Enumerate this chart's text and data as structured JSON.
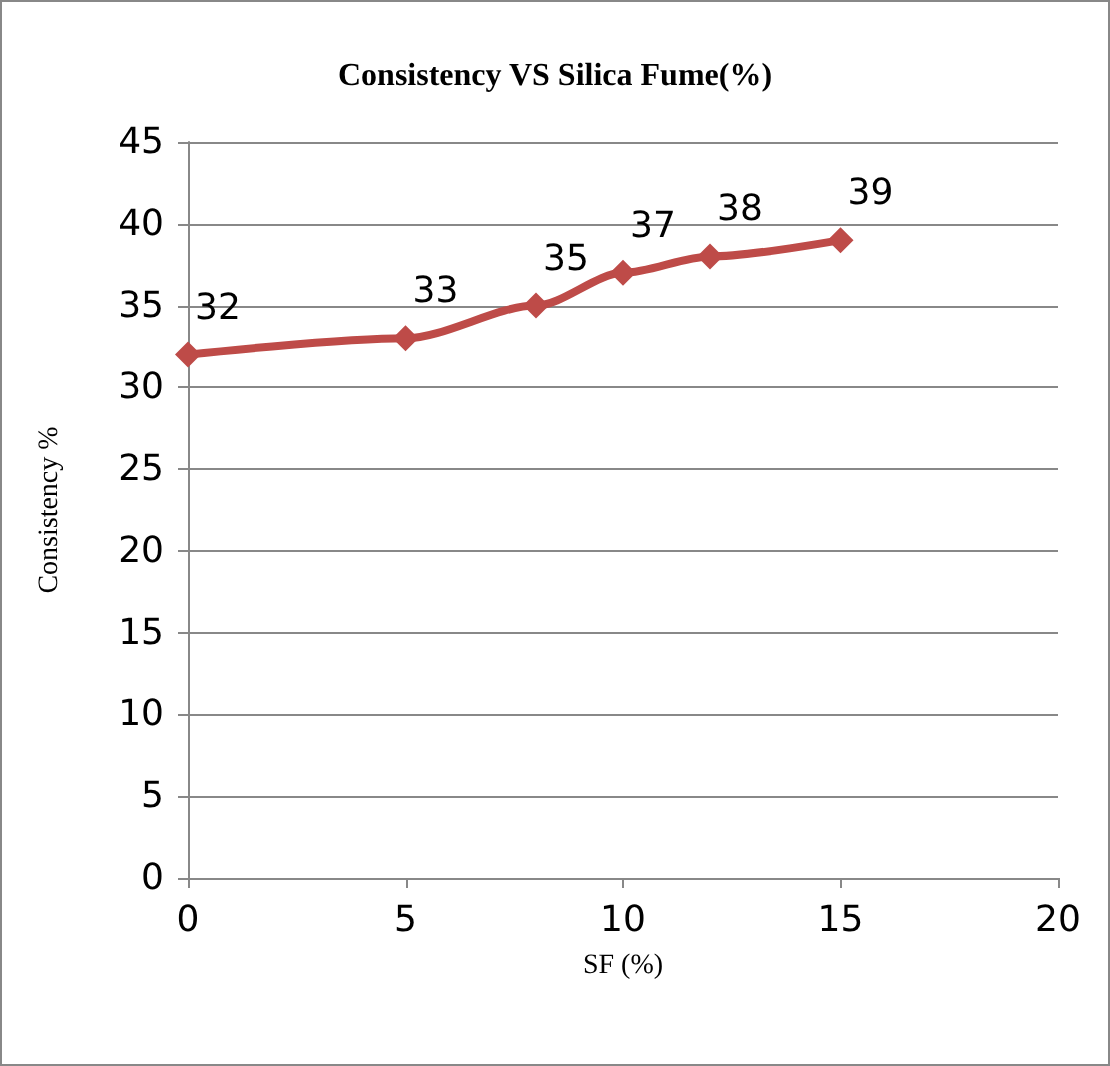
{
  "chart_data": {
    "type": "line",
    "title": "Consistency VS Silica Fume(%)",
    "xlabel": "SF (%)",
    "ylabel": "Consistency %",
    "x": [
      0,
      5,
      8,
      10,
      12,
      15
    ],
    "series": [
      {
        "color": "#be4b48",
        "values": [
          32,
          33,
          35,
          37,
          38,
          39
        ]
      }
    ],
    "xlim": [
      0,
      20
    ],
    "xticks": [
      0,
      5,
      10,
      15,
      20
    ],
    "ylim": [
      0,
      45
    ],
    "yticks": [
      0,
      5,
      10,
      15,
      20,
      25,
      30,
      35,
      40,
      45
    ],
    "grid": "y",
    "marker": "diamond",
    "line_style": "solid",
    "data_labels": true
  }
}
